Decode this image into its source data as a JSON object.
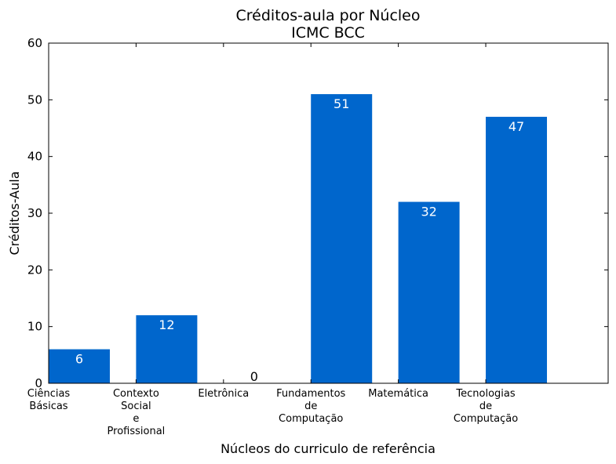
{
  "chart_data": {
    "type": "bar",
    "title": "Créditos-aula por Núcleo",
    "subtitle": "ICMC BCC",
    "xlabel": "Núcleos do curriculo de referência",
    "ylabel": "Créditos-Aula",
    "ylim": [
      0,
      60
    ],
    "yticks": [
      "0",
      "10",
      "20",
      "30",
      "40",
      "50",
      "60"
    ],
    "categories": [
      [
        "Ciências",
        "Básicas"
      ],
      [
        "Contexto",
        "Social",
        "e",
        "Profissional"
      ],
      [
        "Eletrônica"
      ],
      [
        "Fundamentos",
        "de",
        "Computação"
      ],
      [
        "Matemática"
      ],
      [
        "Tecnologias",
        "de",
        "Computação"
      ]
    ],
    "values": [
      6,
      12,
      0,
      51,
      32,
      47
    ],
    "value_labels": [
      "6",
      "12",
      "0",
      "51",
      "32",
      "47"
    ],
    "bar_color": "#0066cc",
    "grid": false,
    "legend": "none"
  }
}
